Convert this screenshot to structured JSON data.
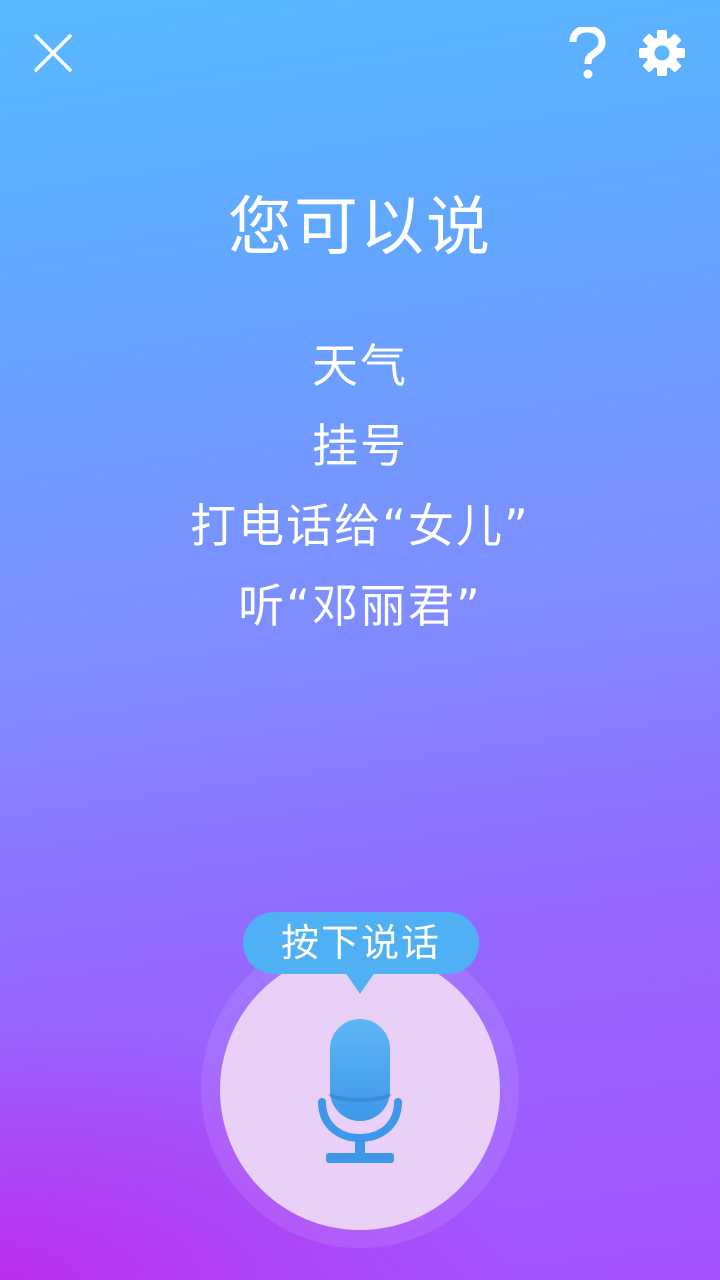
{
  "header": {
    "close_icon": "close-icon",
    "help_icon": "help-icon",
    "settings_icon": "gear-icon"
  },
  "suggestions": {
    "title": "您可以说",
    "items": [
      "天气",
      "挂号",
      "打电话给“女儿”",
      "听“邓丽君”"
    ]
  },
  "voice": {
    "hint": "按下说话",
    "mic_icon": "microphone-icon"
  },
  "colors": {
    "background_top": "#57B9FF",
    "background_bottom": "#A552FF",
    "accent_blue": "#4FB0F4",
    "mic_button": "#E9D0F7",
    "text": "#FFFFFF"
  }
}
